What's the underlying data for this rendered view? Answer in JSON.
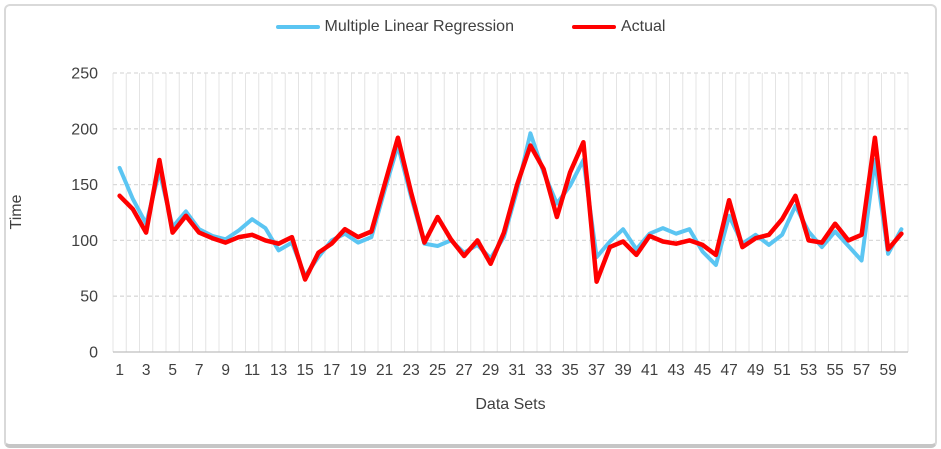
{
  "frame": {
    "background": "#ffffff",
    "border_color": "#d9d9d9",
    "bottom_edge_color": "#c6c6c6"
  },
  "legend": {
    "position": "top-center",
    "items": [
      {
        "label": "Multiple Linear Regression",
        "color": "#5bc5f2"
      },
      {
        "label": "Actual",
        "color": "#ff0000"
      }
    ]
  },
  "axes": {
    "x_title": "Data Sets",
    "y_title": "Time",
    "tick_text_color": "#404040",
    "axis_line_color": "#bfbfbf",
    "h_grid_color": "#d9d9d9",
    "v_grid_color": "#e4e4e4"
  },
  "chart_data": {
    "type": "line",
    "title": "",
    "xlabel": "Data Sets",
    "ylabel": "Time",
    "ylim": [
      0,
      250
    ],
    "y_ticks": [
      0,
      50,
      100,
      150,
      200,
      250
    ],
    "x_count": 60,
    "x_tick_labels": [
      "1",
      "3",
      "5",
      "7",
      "9",
      "11",
      "13",
      "15",
      "17",
      "19",
      "21",
      "23",
      "25",
      "27",
      "29",
      "31",
      "33",
      "35",
      "37",
      "39",
      "41",
      "43",
      "45",
      "47",
      "49",
      "51",
      "53",
      "55",
      "57",
      "59"
    ],
    "grid": {
      "horizontal": "dashed",
      "vertical": "solid"
    },
    "legend_position": "top",
    "series": [
      {
        "name": "Multiple Linear Regression",
        "color": "#5bc5f2",
        "stroke_width": 4,
        "values": [
          165,
          137,
          115,
          162,
          112,
          126,
          110,
          104,
          101,
          109,
          119,
          111,
          91,
          98,
          68,
          85,
          100,
          106,
          98,
          103,
          145,
          185,
          139,
          97,
          95,
          100,
          89,
          96,
          84,
          103,
          145,
          196,
          161,
          133,
          149,
          172,
          85,
          99,
          110,
          92,
          106,
          111,
          106,
          110,
          90,
          78,
          122,
          97,
          105,
          96,
          105,
          131,
          108,
          94,
          108,
          95,
          82,
          172,
          88,
          110
        ]
      },
      {
        "name": "Actual",
        "color": "#ff0000",
        "stroke_width": 4.5,
        "values": [
          140,
          128,
          107,
          172,
          107,
          122,
          107,
          102,
          98,
          103,
          105,
          100,
          97,
          103,
          65,
          89,
          97,
          110,
          103,
          108,
          150,
          192,
          143,
          98,
          121,
          101,
          86,
          100,
          79,
          107,
          150,
          185,
          164,
          121,
          161,
          188,
          63,
          94,
          99,
          87,
          104,
          99,
          97,
          100,
          96,
          87,
          136,
          94,
          102,
          105,
          119,
          140,
          100,
          98,
          115,
          100,
          105,
          192,
          92,
          106
        ]
      }
    ]
  }
}
